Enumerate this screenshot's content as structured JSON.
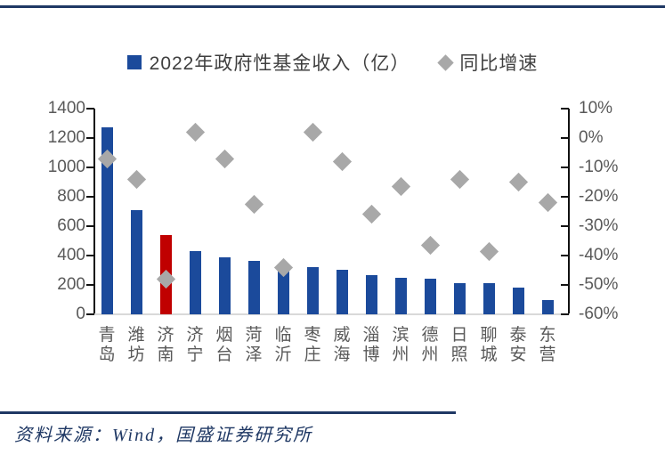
{
  "legend": {
    "bar_label": "2022年政府性基金收入（亿）",
    "diamond_label": "同比增速"
  },
  "footer": {
    "source_text": "资料来源：Wind，国盛证券研究所"
  },
  "colors": {
    "bar_blue": "#1b4a9b",
    "highlight_red": "#c00000",
    "diamond_gray": "#a8a8a8",
    "rule_navy": "#1f3864",
    "axis_text_gray": "#595959"
  },
  "chart_data": {
    "type": "bar",
    "subtype": "bar-with-scatter-combo",
    "title": "",
    "categories": [
      "青岛",
      "潍坊",
      "济南",
      "济宁",
      "烟台",
      "菏泽",
      "临沂",
      "枣庄",
      "威海",
      "淄博",
      "滨州",
      "德州",
      "日照",
      "聊城",
      "泰安",
      "东营"
    ],
    "series": [
      {
        "name": "2022年政府性基金收入（亿）",
        "type": "bar",
        "axis": "left",
        "values": [
          1270,
          710,
          540,
          430,
          390,
          365,
          325,
          320,
          305,
          265,
          250,
          240,
          215,
          210,
          180,
          95
        ],
        "highlight_index": 2,
        "highlight_category": "济南"
      },
      {
        "name": "同比增速",
        "type": "scatter-diamond",
        "axis": "right",
        "values": [
          -7,
          -14,
          -48,
          2,
          -7,
          -22.5,
          -44,
          2,
          -8,
          -26,
          -16.5,
          -36.5,
          -14,
          -38.5,
          -15,
          -22
        ]
      }
    ],
    "left_axis": {
      "min": 0,
      "max": 1400,
      "step": 200,
      "ticks": [
        "1400",
        "1200",
        "1000",
        "800",
        "600",
        "400",
        "200",
        "0"
      ]
    },
    "right_axis": {
      "min": -60,
      "max": 10,
      "step": 10,
      "ticks": [
        "10%",
        "0%",
        "-10%",
        "-20%",
        "-30%",
        "-40%",
        "-50%",
        "-60%"
      ]
    },
    "grid": false,
    "legend_position": "top-center"
  }
}
